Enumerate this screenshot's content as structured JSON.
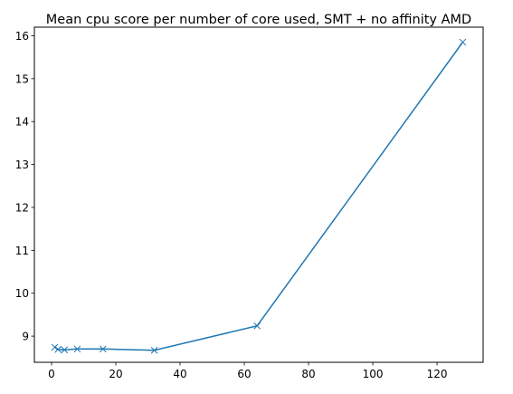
{
  "chart_data": {
    "type": "line",
    "title": "Mean cpu score per number of core used, SMT  + no affinity AMD",
    "xlabel": "",
    "ylabel": "",
    "xlim": [
      -5.35,
      134.35
    ],
    "ylim": [
      8.39,
      16.2
    ],
    "x_ticks": [
      0,
      20,
      40,
      60,
      80,
      100,
      120
    ],
    "y_ticks": [
      9,
      10,
      11,
      12,
      13,
      14,
      15,
      16
    ],
    "marker": "x",
    "grid": false,
    "series": [
      {
        "color": "#1f77b4",
        "x": [
          1,
          2,
          4,
          8,
          16,
          32,
          64,
          128
        ],
        "y": [
          8.74,
          8.69,
          8.68,
          8.7,
          8.7,
          8.67,
          9.24,
          15.85
        ]
      }
    ]
  }
}
